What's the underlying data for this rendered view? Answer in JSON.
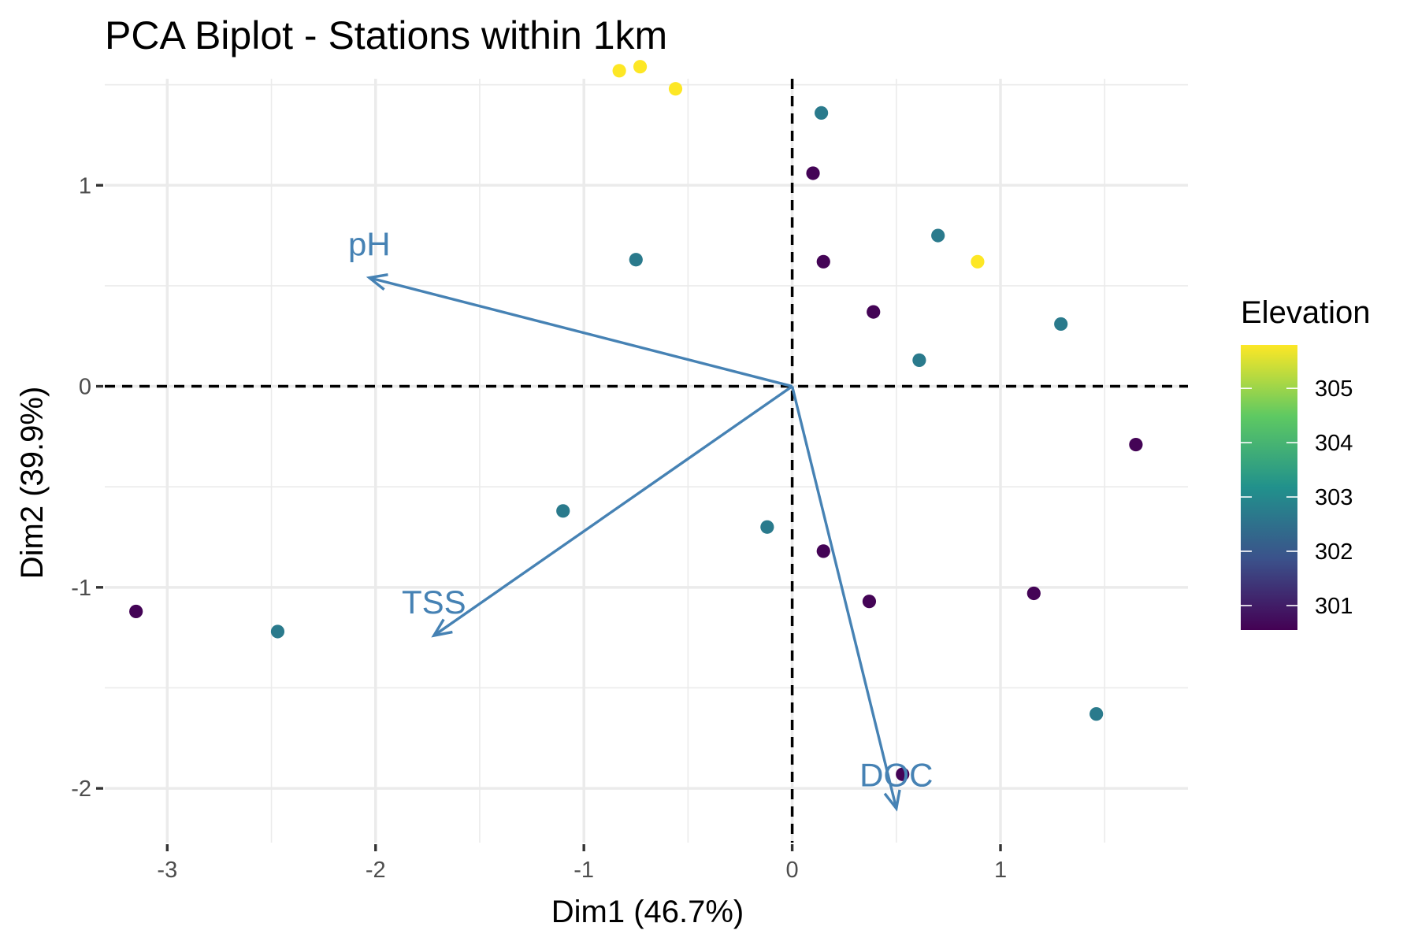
{
  "chart_data": {
    "type": "scatter",
    "title": "PCA Biplot - Stations within 1km",
    "xlabel": "Dim1 (46.7%)",
    "ylabel": "Dim2 (39.9%)",
    "xlim": [
      -3.3,
      1.9
    ],
    "ylim": [
      -2.27,
      1.53
    ],
    "x_ticks": [
      -3,
      -2,
      -1,
      0,
      1
    ],
    "y_ticks": [
      -2,
      -1,
      0,
      1
    ],
    "x_tick_labels": [
      "-3",
      "-2",
      "-1",
      "0",
      "1"
    ],
    "y_tick_labels": [
      "-2",
      "-1",
      "0",
      "1"
    ],
    "grid": true,
    "reference_lines": {
      "x": 0,
      "y": 0,
      "style": "dashed"
    },
    "points": [
      {
        "x": -0.83,
        "y": 1.57,
        "elevation": 305.8
      },
      {
        "x": -0.73,
        "y": 1.59,
        "elevation": 305.8
      },
      {
        "x": -0.56,
        "y": 1.48,
        "elevation": 305.8
      },
      {
        "x": 0.14,
        "y": 1.36,
        "elevation": 302.7
      },
      {
        "x": 0.1,
        "y": 1.06,
        "elevation": 300.6
      },
      {
        "x": -0.75,
        "y": 0.63,
        "elevation": 302.7
      },
      {
        "x": 0.7,
        "y": 0.75,
        "elevation": 302.7
      },
      {
        "x": 0.89,
        "y": 0.62,
        "elevation": 305.8
      },
      {
        "x": 0.15,
        "y": 0.62,
        "elevation": 300.6
      },
      {
        "x": 0.39,
        "y": 0.37,
        "elevation": 300.6
      },
      {
        "x": 1.29,
        "y": 0.31,
        "elevation": 302.7
      },
      {
        "x": 0.61,
        "y": 0.13,
        "elevation": 302.7
      },
      {
        "x": 1.65,
        "y": -0.29,
        "elevation": 300.6
      },
      {
        "x": -1.1,
        "y": -0.62,
        "elevation": 302.7
      },
      {
        "x": -0.12,
        "y": -0.7,
        "elevation": 302.7
      },
      {
        "x": 0.15,
        "y": -0.82,
        "elevation": 300.6
      },
      {
        "x": 0.37,
        "y": -1.07,
        "elevation": 300.6
      },
      {
        "x": 1.16,
        "y": -1.03,
        "elevation": 300.6
      },
      {
        "x": -3.15,
        "y": -1.12,
        "elevation": 300.6
      },
      {
        "x": -2.47,
        "y": -1.22,
        "elevation": 302.7
      },
      {
        "x": 1.46,
        "y": -1.63,
        "elevation": 302.7
      },
      {
        "x": 0.53,
        "y": -1.93,
        "elevation": 300.6
      }
    ],
    "vectors": [
      {
        "name": "pH",
        "x": -2.03,
        "y": 0.54
      },
      {
        "name": "TSS",
        "x": -1.72,
        "y": -1.24
      },
      {
        "name": "DOC",
        "x": 0.5,
        "y": -2.1
      }
    ],
    "vector_color": "#4682B4",
    "legend": {
      "title": "Elevation",
      "placement": "right",
      "range": [
        300.55,
        305.8
      ],
      "ticks": [
        301,
        302,
        303,
        304,
        305
      ],
      "tick_labels": [
        "301",
        "302",
        "303",
        "304",
        "305"
      ],
      "colormap": "viridis",
      "stops": [
        "#440154",
        "#3b528b",
        "#21918c",
        "#5ec962",
        "#fde725"
      ]
    }
  }
}
